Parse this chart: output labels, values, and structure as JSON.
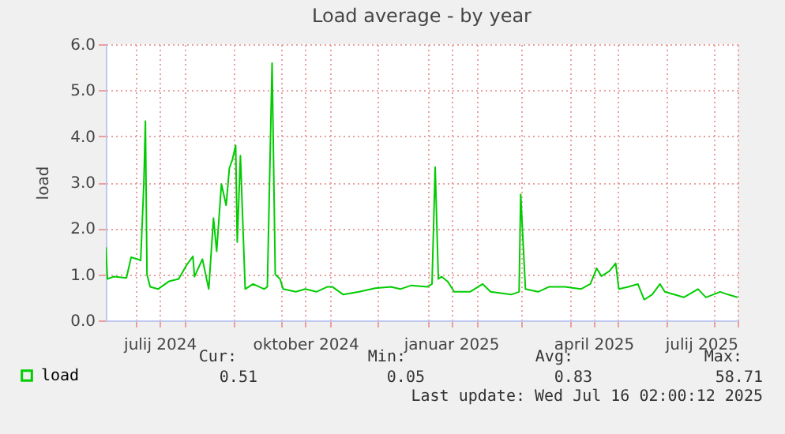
{
  "chart_data": {
    "type": "line",
    "title": "Load average - by year",
    "ylabel": "load",
    "x": [
      "2024-06-12",
      "2024-06-13",
      "2024-06-17",
      "2024-06-25",
      "2024-06-28",
      "2024-07-02",
      "2024-07-04",
      "2024-07-06",
      "2024-07-07",
      "2024-07-08",
      "2024-07-10",
      "2024-07-15",
      "2024-07-22",
      "2024-07-28",
      "2024-08-02",
      "2024-08-06",
      "2024-08-07",
      "2024-08-12",
      "2024-08-16",
      "2024-08-19",
      "2024-08-21",
      "2024-08-24",
      "2024-08-27",
      "2024-08-29",
      "2024-08-31",
      "2024-09-02",
      "2024-09-03",
      "2024-09-05",
      "2024-09-08",
      "2024-09-13",
      "2024-09-20",
      "2024-09-22",
      "2024-09-25",
      "2024-09-27",
      "2024-09-30",
      "2024-10-02",
      "2024-10-10",
      "2024-10-16",
      "2024-10-23",
      "2024-10-30",
      "2024-11-02",
      "2024-11-09",
      "2024-11-19",
      "2024-11-29",
      "2024-12-09",
      "2024-12-15",
      "2024-12-22",
      "2025-01-01",
      "2025-01-04",
      "2025-01-06",
      "2025-01-08",
      "2025-01-10",
      "2025-01-14",
      "2025-01-18",
      "2025-01-28",
      "2025-02-05",
      "2025-02-10",
      "2025-02-23",
      "2025-02-28",
      "2025-03-01",
      "2025-03-04",
      "2025-03-12",
      "2025-03-19",
      "2025-03-29",
      "2025-04-08",
      "2025-04-14",
      "2025-04-18",
      "2025-04-21",
      "2025-04-26",
      "2025-04-30",
      "2025-05-02",
      "2025-05-08",
      "2025-05-14",
      "2025-05-18",
      "2025-05-23",
      "2025-05-28",
      "2025-05-31",
      "2025-06-06",
      "2025-06-12",
      "2025-06-21",
      "2025-06-26",
      "2025-07-05",
      "2025-07-10",
      "2025-07-16"
    ],
    "series": [
      {
        "name": "load",
        "color": "#00cc00",
        "values": [
          1.59,
          0.9,
          0.95,
          0.92,
          1.37,
          1.33,
          1.3,
          2.96,
          4.33,
          1.0,
          0.73,
          0.68,
          0.85,
          0.9,
          1.2,
          1.39,
          0.95,
          1.33,
          0.68,
          2.22,
          1.5,
          2.96,
          2.5,
          3.3,
          3.5,
          3.8,
          1.7,
          3.58,
          0.68,
          0.79,
          0.68,
          0.73,
          5.59,
          1.0,
          0.9,
          0.68,
          0.62,
          0.68,
          0.62,
          0.73,
          0.73,
          0.56,
          0.62,
          0.7,
          0.73,
          0.68,
          0.76,
          0.73,
          0.79,
          3.33,
          0.9,
          0.95,
          0.84,
          0.62,
          0.62,
          0.79,
          0.62,
          0.56,
          0.62,
          2.74,
          0.68,
          0.62,
          0.73,
          0.73,
          0.68,
          0.79,
          1.13,
          0.96,
          1.07,
          1.24,
          0.68,
          0.73,
          0.79,
          0.45,
          0.56,
          0.79,
          0.62,
          0.56,
          0.5,
          0.68,
          0.5,
          0.62,
          0.56,
          0.5
        ]
      }
    ],
    "xlim": [
      "2024-06-12",
      "2025-07-16"
    ],
    "xticks": [
      {
        "value": "2024-07-01",
        "label": null
      },
      {
        "value": "2024-07-16",
        "label": "julij 2024"
      },
      {
        "value": "2024-08-01",
        "label": null
      },
      {
        "value": "2024-09-01",
        "label": null
      },
      {
        "value": "2024-10-01",
        "label": null
      },
      {
        "value": "2024-10-16",
        "label": "oktober 2024"
      },
      {
        "value": "2024-11-01",
        "label": null
      },
      {
        "value": "2024-12-01",
        "label": null
      },
      {
        "value": "2025-01-01",
        "label": null
      },
      {
        "value": "2025-01-16",
        "label": "januar 2025"
      },
      {
        "value": "2025-02-01",
        "label": null
      },
      {
        "value": "2025-03-01",
        "label": null
      },
      {
        "value": "2025-04-01",
        "label": null
      },
      {
        "value": "2025-04-16",
        "label": "april 2025"
      },
      {
        "value": "2025-05-01",
        "label": null
      },
      {
        "value": "2025-06-01",
        "label": null
      },
      {
        "value": "2025-07-01",
        "label": null
      },
      {
        "value": "2025-07-16",
        "label": "julij 2025"
      }
    ],
    "ylim": [
      0,
      6
    ],
    "yticks": [
      {
        "value": 0,
        "label": "0.0"
      },
      {
        "value": 1,
        "label": "1.0"
      },
      {
        "value": 2,
        "label": "2.0"
      },
      {
        "value": 3,
        "label": "3.0"
      },
      {
        "value": 4,
        "label": "4.0"
      },
      {
        "value": 5,
        "label": "5.0"
      },
      {
        "value": 6,
        "label": "6.0"
      }
    ],
    "grid": true,
    "legend": "bottom left",
    "annotations": [
      "Cur:",
      "Min:",
      "Avg:",
      "Max:",
      "0.51",
      "0.05",
      "0.83",
      "58.71",
      "Last update: Wed Jul 16 02:00:12 2025"
    ]
  }
}
